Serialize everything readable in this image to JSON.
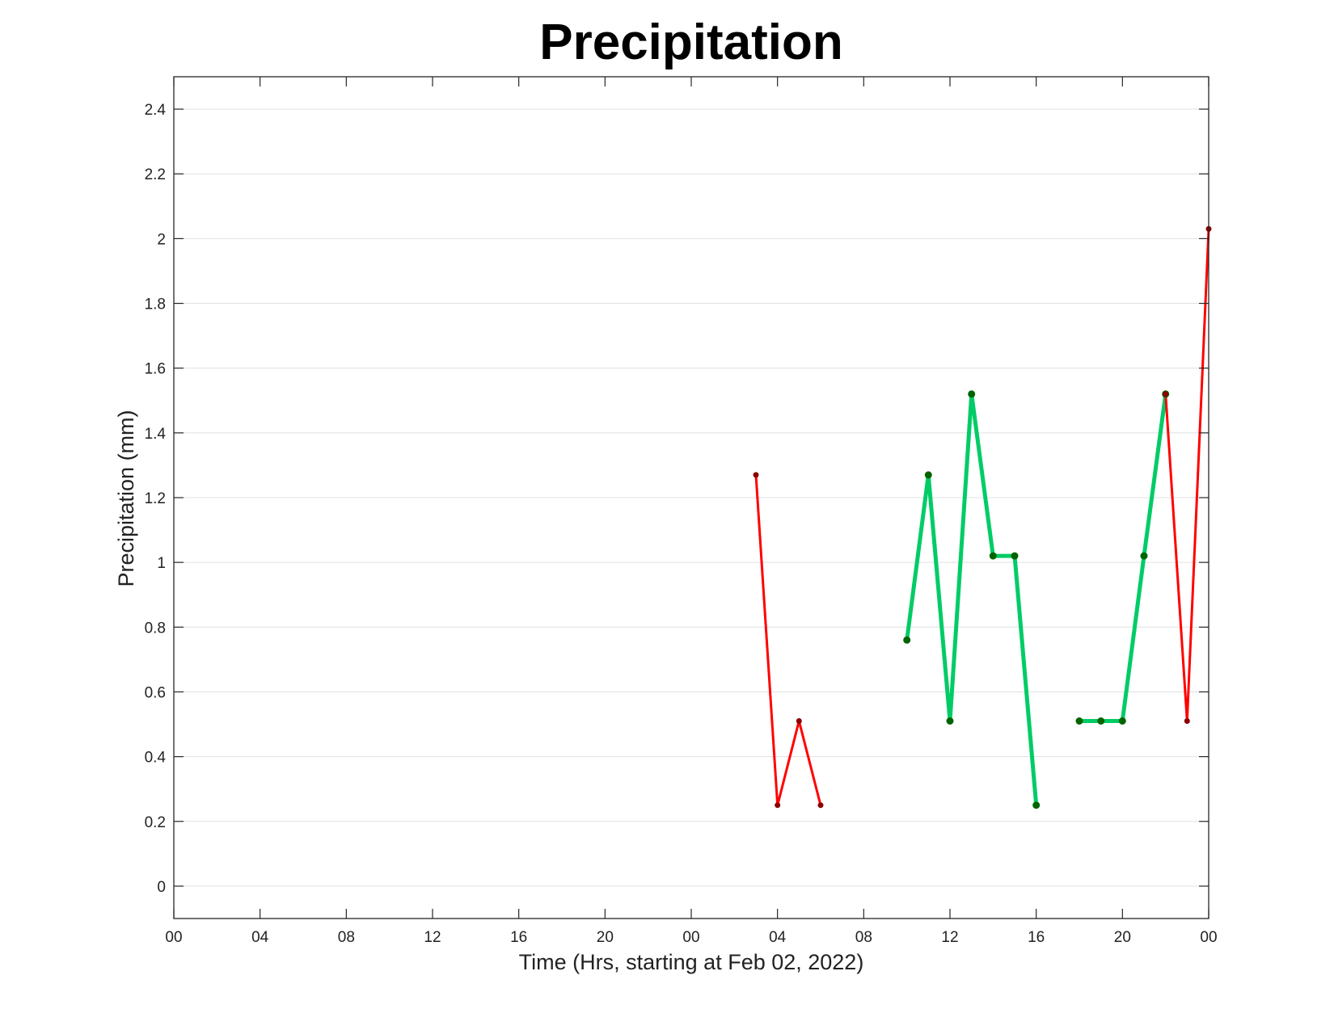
{
  "chart_data": {
    "type": "line",
    "title": "Precipitation",
    "xlabel": "Time (Hrs, starting at Feb 02, 2022)",
    "ylabel": "Precipitation (mm)",
    "xlim": [
      "2022-02-02 00:00",
      "2022-02-04 00:00"
    ],
    "ylim": [
      -0.1,
      2.5
    ],
    "grid": "horizontal",
    "x_ticks": [
      {
        "time": "2022-02-02 00:00",
        "label": "00"
      },
      {
        "time": "2022-02-02 04:00",
        "label": "04"
      },
      {
        "time": "2022-02-02 08:00",
        "label": "08"
      },
      {
        "time": "2022-02-02 12:00",
        "label": "12"
      },
      {
        "time": "2022-02-02 16:00",
        "label": "16"
      },
      {
        "time": "2022-02-02 20:00",
        "label": "20"
      },
      {
        "time": "2022-02-03 00:00",
        "label": "00"
      },
      {
        "time": "2022-02-03 04:00",
        "label": "04"
      },
      {
        "time": "2022-02-03 08:00",
        "label": "08"
      },
      {
        "time": "2022-02-03 12:00",
        "label": "12"
      },
      {
        "time": "2022-02-03 16:00",
        "label": "16"
      },
      {
        "time": "2022-02-03 20:00",
        "label": "20"
      },
      {
        "time": "2022-02-04 00:00",
        "label": "00"
      }
    ],
    "y_ticks": [
      {
        "value": 0,
        "label": "0"
      },
      {
        "value": 0.2,
        "label": "0.2"
      },
      {
        "value": 0.4,
        "label": "0.4"
      },
      {
        "value": 0.6,
        "label": "0.6"
      },
      {
        "value": 0.8,
        "label": "0.8"
      },
      {
        "value": 1.0,
        "label": "1"
      },
      {
        "value": 1.2,
        "label": "1.2"
      },
      {
        "value": 1.4,
        "label": "1.4"
      },
      {
        "value": 1.6,
        "label": "1.6"
      },
      {
        "value": 1.8,
        "label": "1.8"
      },
      {
        "value": 2.0,
        "label": "2"
      },
      {
        "value": 2.2,
        "label": "2.2"
      },
      {
        "value": 2.4,
        "label": "2.4"
      }
    ],
    "series": [
      {
        "color": "#ff0000",
        "marker_color": "#8b0000",
        "style": "thin",
        "segments": [
          [
            {
              "time": "2022-02-03 03:00",
              "value": 1.27
            },
            {
              "time": "2022-02-03 04:00",
              "value": 0.25
            },
            {
              "time": "2022-02-03 05:00",
              "value": 0.51
            },
            {
              "time": "2022-02-03 06:00",
              "value": 0.25
            }
          ],
          [
            {
              "time": "2022-02-03 22:00",
              "value": 1.52
            },
            {
              "time": "2022-02-03 23:00",
              "value": 0.51
            },
            {
              "time": "2022-02-04 00:00",
              "value": 2.03
            }
          ]
        ]
      },
      {
        "color": "#00cc66",
        "marker_color": "#006400",
        "style": "thick",
        "segments": [
          [
            {
              "time": "2022-02-03 10:00",
              "value": 0.76
            },
            {
              "time": "2022-02-03 11:00",
              "value": 1.27
            },
            {
              "time": "2022-02-03 12:00",
              "value": 0.51
            },
            {
              "time": "2022-02-03 13:00",
              "value": 1.52
            },
            {
              "time": "2022-02-03 14:00",
              "value": 1.02
            },
            {
              "time": "2022-02-03 15:00",
              "value": 1.02
            },
            {
              "time": "2022-02-03 16:00",
              "value": 0.25
            }
          ],
          [
            {
              "time": "2022-02-03 18:00",
              "value": 0.51
            },
            {
              "time": "2022-02-03 19:00",
              "value": 0.51
            },
            {
              "time": "2022-02-03 20:00",
              "value": 0.51
            },
            {
              "time": "2022-02-03 21:00",
              "value": 1.02
            },
            {
              "time": "2022-02-03 22:00",
              "value": 1.52
            }
          ]
        ]
      }
    ]
  }
}
